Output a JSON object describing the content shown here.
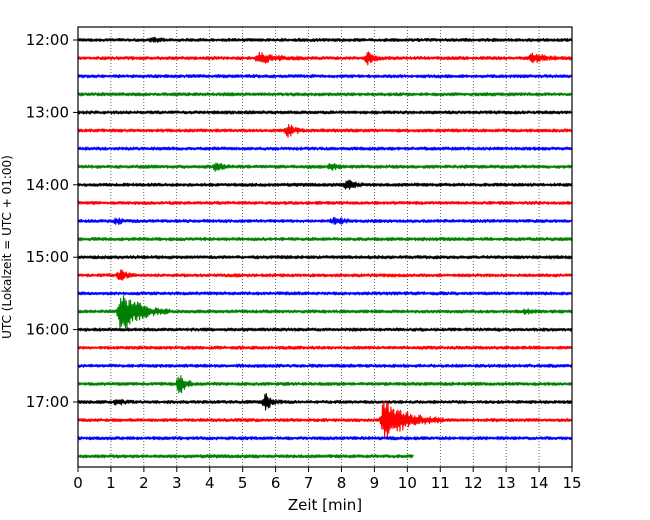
{
  "chart_data": {
    "type": "line",
    "title": "",
    "xlabel": "Zeit  [min]",
    "ylabel": "UTC (Lokalzeit = UTC + 01:00)",
    "xlim": [
      0,
      15
    ],
    "x_ticks": [
      "0",
      "1",
      "2",
      "3",
      "4",
      "5",
      "6",
      "7",
      "8",
      "9",
      "10",
      "11",
      "12",
      "13",
      "14",
      "15"
    ],
    "y_ticks": [
      "12:00",
      "13:00",
      "14:00",
      "15:00",
      "16:00",
      "17:00"
    ],
    "grid": "vertical dotted",
    "row_minutes": 15,
    "colors": [
      "#000000",
      "#ff0000",
      "#0000ff",
      "#008000"
    ],
    "rows": [
      {
        "start": "12:00",
        "color": "#000000",
        "end": 15,
        "events": [
          {
            "t": 2.3,
            "a": 0.2
          }
        ]
      },
      {
        "start": "12:15",
        "color": "#ff0000",
        "end": 15,
        "events": [
          {
            "t": 5.5,
            "a": 0.5,
            "w": 1.5
          },
          {
            "t": 8.8,
            "a": 0.6
          },
          {
            "t": 13.8,
            "a": 0.4,
            "w": 1.2
          }
        ]
      },
      {
        "start": "12:30",
        "color": "#0000ff",
        "end": 15,
        "events": []
      },
      {
        "start": "12:45",
        "color": "#008000",
        "end": 15,
        "events": []
      },
      {
        "start": "13:00",
        "color": "#000000",
        "end": 15,
        "events": []
      },
      {
        "start": "13:15",
        "color": "#ff0000",
        "end": 15,
        "events": [
          {
            "t": 6.4,
            "a": 0.7
          }
        ]
      },
      {
        "start": "13:30",
        "color": "#0000ff",
        "end": 15,
        "events": []
      },
      {
        "start": "13:45",
        "color": "#008000",
        "end": 15,
        "events": [
          {
            "t": 4.2,
            "a": 0.4
          },
          {
            "t": 7.7,
            "a": 0.3
          }
        ]
      },
      {
        "start": "14:00",
        "color": "#000000",
        "end": 15,
        "events": [
          {
            "t": 8.2,
            "a": 0.6
          }
        ]
      },
      {
        "start": "14:15",
        "color": "#ff0000",
        "end": 15,
        "events": []
      },
      {
        "start": "14:30",
        "color": "#0000ff",
        "end": 15,
        "events": [
          {
            "t": 1.2,
            "a": 0.3
          },
          {
            "t": 7.8,
            "a": 0.5
          }
        ]
      },
      {
        "start": "14:45",
        "color": "#008000",
        "end": 15,
        "events": []
      },
      {
        "start": "15:00",
        "color": "#000000",
        "end": 15,
        "events": []
      },
      {
        "start": "15:15",
        "color": "#ff0000",
        "end": 15,
        "events": [
          {
            "t": 1.3,
            "a": 0.5
          }
        ]
      },
      {
        "start": "15:30",
        "color": "#0000ff",
        "end": 15,
        "events": []
      },
      {
        "start": "15:45",
        "color": "#008000",
        "end": 15,
        "events": [
          {
            "t": 1.3,
            "a": 2.2,
            "w": 1.5
          },
          {
            "t": 13.6,
            "a": 0.2
          }
        ]
      },
      {
        "start": "16:00",
        "color": "#000000",
        "end": 15,
        "events": []
      },
      {
        "start": "16:15",
        "color": "#ff0000",
        "end": 15,
        "events": []
      },
      {
        "start": "16:30",
        "color": "#0000ff",
        "end": 15,
        "events": []
      },
      {
        "start": "16:45",
        "color": "#008000",
        "end": 15,
        "events": [
          {
            "t": 3.1,
            "a": 1.0
          }
        ]
      },
      {
        "start": "17:00",
        "color": "#000000",
        "end": 15,
        "events": [
          {
            "t": 1.2,
            "a": 0.3
          },
          {
            "t": 5.7,
            "a": 0.8
          }
        ]
      },
      {
        "start": "17:15",
        "color": "#ff0000",
        "end": 15,
        "events": [
          {
            "t": 9.3,
            "a": 2.2,
            "w": 1.8
          }
        ]
      },
      {
        "start": "17:30",
        "color": "#0000ff",
        "end": 15,
        "events": []
      },
      {
        "start": "17:45",
        "color": "#008000",
        "end": 10.2,
        "events": []
      }
    ]
  }
}
